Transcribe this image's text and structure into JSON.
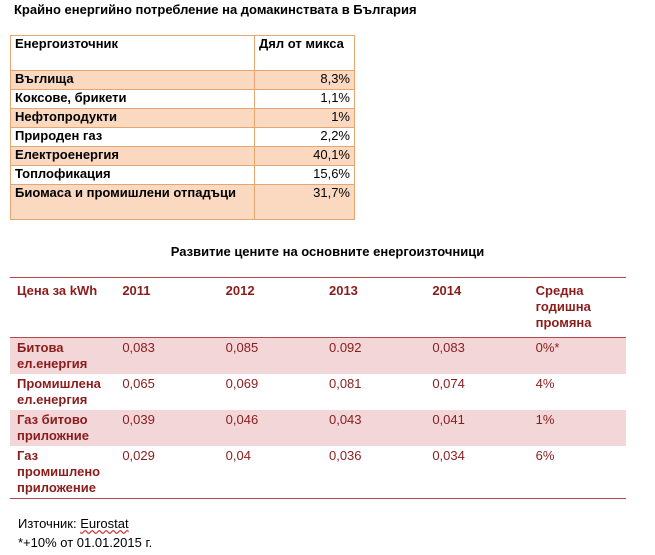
{
  "table1": {
    "title": "Крайно енергийно потребление на домакинствата в България",
    "header": {
      "col1": "Енергоизточник",
      "col2": "Дял от микса"
    },
    "rows": [
      {
        "name": "Въглища",
        "share": "8,3%"
      },
      {
        "name": "Коксове, брикети",
        "share": "1,1%"
      },
      {
        "name": "Нефтопродукти",
        "share": "1%"
      },
      {
        "name": "Природен газ",
        "share": "2,2%"
      },
      {
        "name": "Електроенергия",
        "share": "40,1%"
      },
      {
        "name": "Топлофикация",
        "share": "15,6%"
      },
      {
        "name": "Биомаса и промишлени отпадъци",
        "share": "31,7%"
      }
    ],
    "colors": {
      "shade": "#fbd9c0",
      "border": "#e7a66f"
    }
  },
  "table2": {
    "title": "Развитие цените на основните енергоизточници",
    "headers": [
      "Цена за kWh",
      "2011",
      "2012",
      "2013",
      "2014",
      "Средна годишна промяна"
    ],
    "rows": [
      {
        "label": "Битова ел.енергия",
        "values": [
          "0,083",
          "0,085",
          "0.092",
          "0,083"
        ],
        "change": "0%*"
      },
      {
        "label": "Промишлена ел.енергия",
        "values": [
          "0,065",
          "0,069",
          "0,081",
          "0,074"
        ],
        "change": "4%"
      },
      {
        "label": "Газ битово приложние",
        "values": [
          "0,039",
          "0,046",
          "0,043",
          "0,041"
        ],
        "change": "1%"
      },
      {
        "label": "Газ промишлено приложение",
        "values": [
          "0,029",
          "0,04",
          "0,036",
          "0,034"
        ],
        "change": "6%"
      }
    ],
    "colors": {
      "text": "#8b1c1c",
      "shade": "#f2d6d8",
      "rule": "#b5484a"
    }
  },
  "footer": {
    "source_label": "Източник: ",
    "source_name": "Eurostat",
    "note": "*+10% от 01.01.2015  г."
  }
}
